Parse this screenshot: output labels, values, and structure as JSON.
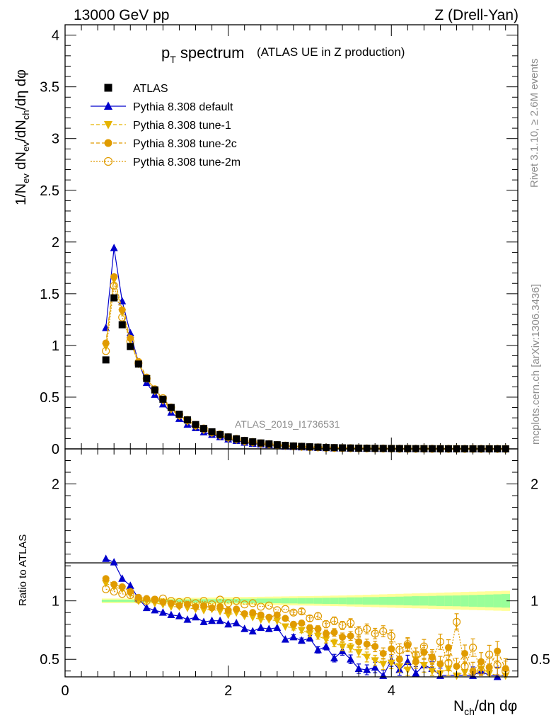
{
  "header": {
    "energy_label": "13000 GeV pp",
    "process_label": "Z (Drell-Yan)",
    "title_main": "p",
    "title_sub": "T",
    "title_rest": " spectrum",
    "title_note": "(ATLAS UE in Z production)",
    "analysis_id": "ATLAS_2019_I1736531",
    "side_rivet": "Rivet 3.1.10, ≥ 2.6M events",
    "side_site": "mcplots.cern.ch [arXiv:1306.3436]"
  },
  "axes": {
    "y_main_label": "1/N_ev dN_ev/dN_ch/dη dφ",
    "y_ratio_label": "Ratio to ATLAS",
    "x_label": "N_ch/dη dφ",
    "y_main_ticks": [
      "0",
      "0.5",
      "1",
      "1.5",
      "2",
      "2.5",
      "3",
      "3.5",
      "4"
    ],
    "y_ratio_ticks": [
      "0.5",
      "1",
      "2"
    ],
    "x_ticks": [
      "0",
      "2",
      "4"
    ]
  },
  "chart_data": {
    "type": "scatter",
    "x_range": [
      0,
      5.55
    ],
    "y_main_range": [
      0,
      4.1
    ],
    "y_ratio_range": [
      0.35,
      2.3
    ],
    "x": [
      0.5,
      0.6,
      0.7,
      0.8,
      0.9,
      1.0,
      1.1,
      1.2,
      1.3,
      1.4,
      1.5,
      1.6,
      1.7,
      1.8,
      1.9,
      2.0,
      2.1,
      2.2,
      2.3,
      2.4,
      2.5,
      2.6,
      2.7,
      2.8,
      2.9,
      3.0,
      3.1,
      3.2,
      3.3,
      3.4,
      3.5,
      3.6,
      3.7,
      3.8,
      3.9,
      4.0,
      4.1,
      4.2,
      4.3,
      4.4,
      4.5,
      4.6,
      4.7,
      4.8,
      4.9,
      5.0,
      5.1,
      5.2,
      5.3,
      5.4
    ],
    "data": {
      "name": "ATLAS",
      "values": [
        0.86,
        1.46,
        1.2,
        0.99,
        0.82,
        0.68,
        0.57,
        0.48,
        0.4,
        0.335,
        0.28,
        0.235,
        0.197,
        0.165,
        0.138,
        0.115,
        0.097,
        0.081,
        0.068,
        0.057,
        0.048,
        0.04,
        0.034,
        0.028,
        0.024,
        0.02,
        0.017,
        0.014,
        0.012,
        0.01,
        0.0085,
        0.0072,
        0.0061,
        0.0052,
        0.0044,
        0.0037,
        0.0031,
        0.0027,
        0.0023,
        0.0019,
        0.0016,
        0.0014,
        0.0012,
        0.001,
        0.00085,
        0.00072,
        0.00061,
        0.00052,
        0.00044,
        0.00037
      ]
    },
    "series": [
      {
        "name": "Pythia 8.308 default",
        "color": "#0000cc",
        "marker": "triangle-up",
        "line": "solid",
        "ratio": [
          1.36,
          1.33,
          1.19,
          1.13,
          1.02,
          0.94,
          0.92,
          0.9,
          0.88,
          0.87,
          0.84,
          0.86,
          0.82,
          0.83,
          0.83,
          0.8,
          0.81,
          0.76,
          0.74,
          0.77,
          0.76,
          0.77,
          0.67,
          0.69,
          0.66,
          0.68,
          0.58,
          0.61,
          0.51,
          0.57,
          0.5,
          0.42,
          0.41,
          0.43,
          0.36,
          0.49,
          0.41,
          0.48,
          0.38,
          0.45,
          0.42,
          0.36,
          0.31,
          0.33,
          0.32,
          0.36,
          0.4,
          0.33,
          0.35,
          0.32
        ]
      },
      {
        "name": "Pythia 8.308 tune-1",
        "color": "#e6b400",
        "marker": "triangle-down",
        "line": "dashed",
        "ratio": [
          1.15,
          1.12,
          1.1,
          1.06,
          1.0,
          1.0,
          0.98,
          0.97,
          0.95,
          0.95,
          0.94,
          0.93,
          0.92,
          0.93,
          0.91,
          0.88,
          0.9,
          0.87,
          0.86,
          0.84,
          0.84,
          0.83,
          0.78,
          0.77,
          0.75,
          0.72,
          0.7,
          0.67,
          0.64,
          0.61,
          0.6,
          0.56,
          0.52,
          0.49,
          0.46,
          0.47,
          0.44,
          0.41,
          0.5,
          0.45,
          0.4,
          0.38,
          0.42,
          0.36,
          0.39,
          0.34,
          0.42,
          0.38,
          0.33,
          0.36
        ]
      },
      {
        "name": "Pythia 8.308 tune-2c",
        "color": "#e09b00",
        "marker": "circle",
        "line": "dashed",
        "ratio": [
          1.19,
          1.14,
          1.12,
          1.08,
          1.03,
          1.02,
          1.01,
          0.99,
          0.98,
          0.96,
          0.97,
          0.95,
          0.96,
          0.94,
          0.95,
          0.92,
          0.93,
          0.89,
          0.9,
          0.88,
          0.86,
          0.88,
          0.85,
          0.8,
          0.81,
          0.77,
          0.76,
          0.72,
          0.73,
          0.69,
          0.7,
          0.65,
          0.63,
          0.61,
          0.55,
          0.59,
          0.5,
          0.62,
          0.48,
          0.56,
          0.52,
          0.46,
          0.6,
          0.44,
          0.55,
          0.4,
          0.48,
          0.43,
          0.57,
          0.42
        ]
      },
      {
        "name": "Pythia 8.308 tune-2m",
        "color": "#e09b00",
        "marker": "circle-open",
        "line": "dotted",
        "ratio": [
          1.1,
          1.08,
          1.06,
          1.05,
          1.01,
          1.0,
          1.01,
          1.02,
          1.0,
          0.99,
          1.0,
          0.98,
          1.0,
          0.97,
          1.01,
          0.98,
          1.0,
          0.97,
          0.98,
          0.95,
          0.96,
          0.92,
          0.93,
          0.9,
          0.91,
          0.85,
          0.87,
          0.8,
          0.83,
          0.79,
          0.81,
          0.74,
          0.76,
          0.72,
          0.74,
          0.7,
          0.58,
          0.63,
          0.54,
          0.61,
          0.5,
          0.65,
          0.47,
          0.82,
          0.44,
          0.6,
          0.4,
          0.54,
          0.45,
          0.4
        ]
      }
    ],
    "data_band": {
      "name": "ATLAS uncertainty",
      "stat_color": "#99ff99",
      "total_color": "#ffff99",
      "inner_halfwidth": [
        0.01,
        0.01,
        0.01,
        0.01,
        0.01,
        0.01,
        0.01,
        0.012,
        0.012,
        0.012,
        0.012,
        0.014,
        0.014,
        0.014,
        0.016,
        0.016,
        0.016,
        0.018,
        0.018,
        0.02,
        0.02,
        0.02,
        0.022,
        0.022,
        0.024,
        0.024,
        0.025,
        0.026,
        0.027,
        0.028,
        0.03,
        0.03,
        0.032,
        0.032,
        0.034,
        0.035,
        0.036,
        0.038,
        0.04,
        0.04,
        0.042,
        0.044,
        0.045,
        0.046,
        0.048,
        0.05,
        0.052,
        0.054,
        0.056,
        0.058
      ],
      "outer_halfwidth": [
        0.02,
        0.02,
        0.02,
        0.02,
        0.02,
        0.022,
        0.022,
        0.024,
        0.024,
        0.025,
        0.026,
        0.027,
        0.028,
        0.029,
        0.03,
        0.031,
        0.032,
        0.033,
        0.034,
        0.035,
        0.036,
        0.037,
        0.038,
        0.039,
        0.04,
        0.041,
        0.042,
        0.043,
        0.045,
        0.046,
        0.048,
        0.05,
        0.052,
        0.054,
        0.056,
        0.058,
        0.06,
        0.062,
        0.064,
        0.066,
        0.068,
        0.07,
        0.072,
        0.074,
        0.076,
        0.078,
        0.08,
        0.082,
        0.084,
        0.086
      ]
    }
  }
}
